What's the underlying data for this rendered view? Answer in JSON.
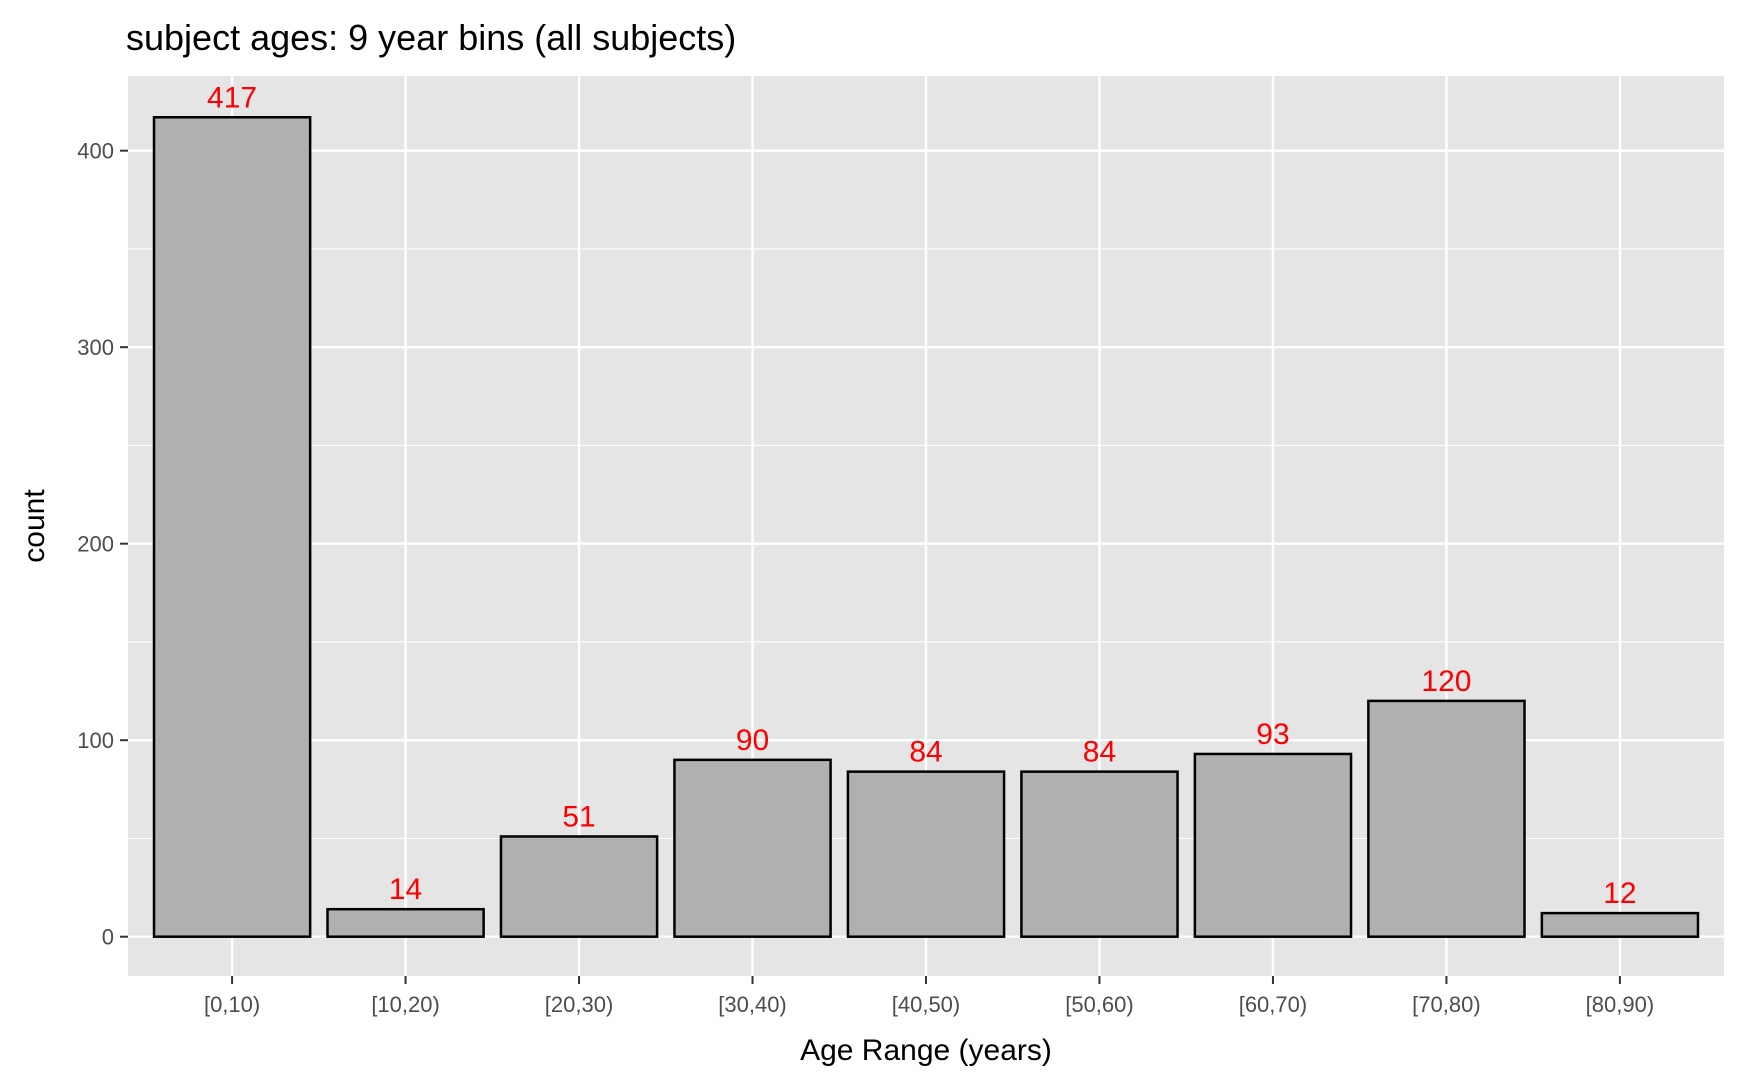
{
  "chart_data": {
    "type": "bar",
    "title": "subject ages: 9 year bins (all subjects)",
    "xlabel": "Age Range (years)",
    "ylabel": "count",
    "categories": [
      "[0,10)",
      "[10,20)",
      "[20,30)",
      "[30,40)",
      "[40,50)",
      "[50,60)",
      "[60,70)",
      "[70,80)",
      "[80,90)"
    ],
    "values": [
      417,
      14,
      51,
      90,
      84,
      84,
      93,
      120,
      12
    ],
    "data_labels": [
      "417",
      "14",
      "51",
      "90",
      "84",
      "84",
      "93",
      "120",
      "12"
    ],
    "yticks": [
      0,
      100,
      200,
      300,
      400
    ],
    "ytick_labels": [
      "0",
      "100",
      "200",
      "300",
      "400"
    ],
    "ylim": [
      -20,
      438
    ],
    "grid": true,
    "legend": "none",
    "colors": {
      "panel_background": "#e5e5e5",
      "grid": "#ffffff",
      "bar_fill": "#b0b0b0",
      "bar_stroke": "#000000",
      "data_label": "#ff0000"
    }
  }
}
